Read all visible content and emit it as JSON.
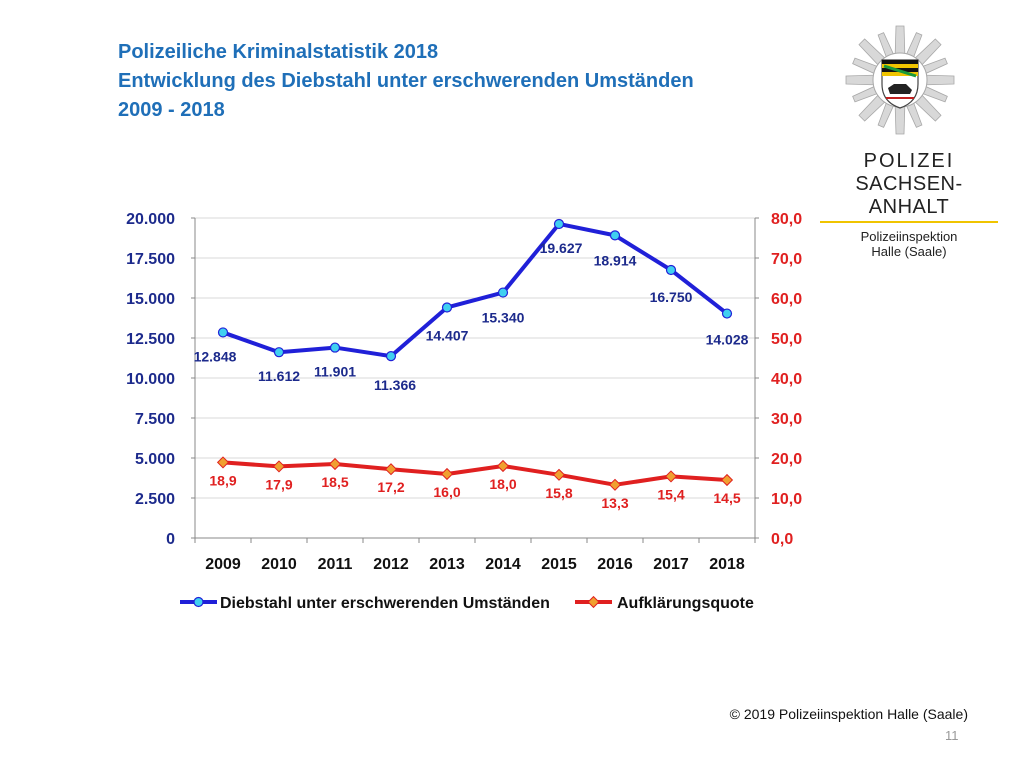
{
  "title": {
    "line1": "Polizeiliche Kriminalstatistik 2018",
    "line2": "Entwicklung des Diebstahl unter erschwerenden Umständen",
    "line3": "2009 - 2018"
  },
  "logo": {
    "line1": "POLIZEI",
    "line2": "SACHSEN-ANHALT",
    "sub1": "Polizeiinspektion",
    "sub2": "Halle (Saale)"
  },
  "footer": "© 2019 Polizeiinspektion Halle (Saale)",
  "page_number": "11",
  "colors": {
    "series1": "#2020d8",
    "series1_marker": "#40d0f0",
    "series2": "#e02020",
    "series2_marker": "#f0a030",
    "left_axis_text": "#1c2a8c",
    "right_axis_text": "#e02020",
    "grid": "#d8d8d8"
  },
  "chart_data": {
    "type": "line",
    "categories": [
      "2009",
      "2010",
      "2011",
      "2012",
      "2013",
      "2014",
      "2015",
      "2016",
      "2017",
      "2018"
    ],
    "y_left": {
      "ylim": [
        0,
        20000
      ],
      "ticks": [
        0,
        2500,
        5000,
        7500,
        10000,
        12500,
        15000,
        17500,
        20000
      ],
      "tick_labels": [
        "0",
        "2.500",
        "5.000",
        "7.500",
        "10.000",
        "12.500",
        "15.000",
        "17.500",
        "20.000"
      ]
    },
    "y_right": {
      "ylim": [
        0,
        80
      ],
      "ticks": [
        0,
        10,
        20,
        30,
        40,
        50,
        60,
        70,
        80
      ],
      "tick_labels": [
        "0,0",
        "10,0",
        "20,0",
        "30,0",
        "40,0",
        "50,0",
        "60,0",
        "70,0",
        "80,0"
      ]
    },
    "grid": true,
    "legend_position": "bottom",
    "series": [
      {
        "name": "Diebstahl unter erschwerenden Umständen",
        "axis": "left",
        "values": [
          12848,
          11612,
          11901,
          11366,
          14407,
          15340,
          19627,
          18914,
          16750,
          14028
        ],
        "labels": [
          "12.848",
          "11.612",
          "11.901",
          "11.366",
          "14.407",
          "15.340",
          "19.627",
          "18.914",
          "16.750",
          "14.028"
        ]
      },
      {
        "name": "Aufklärungsquote",
        "axis": "right",
        "values": [
          18.9,
          17.9,
          18.5,
          17.2,
          16.0,
          18.0,
          15.8,
          13.3,
          15.4,
          14.5
        ],
        "labels": [
          "18,9",
          "17,9",
          "18,5",
          "17,2",
          "16,0",
          "18,0",
          "15,8",
          "13,3",
          "15,4",
          "14,5"
        ]
      }
    ]
  }
}
